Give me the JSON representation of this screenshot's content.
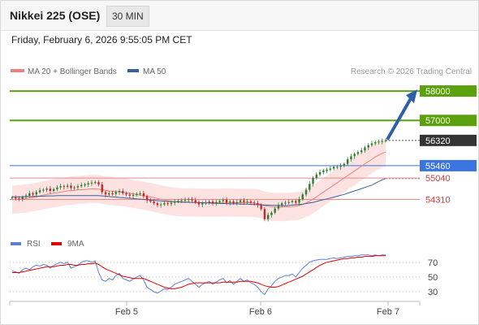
{
  "header": {
    "title": "Nikkei 225 (OSE)",
    "interval": "30 MIN",
    "datetime": "Friday, February 6, 2026 9:55:05 PM CET"
  },
  "legend": {
    "ma20_label": "MA 20 + Bollinger Bands",
    "ma50_label": "MA 50",
    "credit": "Research © 2026 Trading Central",
    "rsi_label": "RSI",
    "rsi_ma_label": "9MA"
  },
  "colors": {
    "candle_up": "#2e7d32",
    "candle_down": "#c62828",
    "ma20": "#f08080",
    "bollinger_fill": "#fde2e2",
    "ma50": "#3a5f9a",
    "resistance": "#5aa00f",
    "pivot": "#3b73e0",
    "support": "#e88a8a",
    "arrow": "#2f5fa5",
    "rsi": "#5b7fd6",
    "rsi_ma": "#e00000",
    "last_price_box": "#333333"
  },
  "chart_data": {
    "type": "candlestick",
    "x_ticks": [
      "Feb 5",
      "Feb 6",
      "Feb 7"
    ],
    "ylim": [
      53300,
      58500
    ],
    "price": {
      "levels": [
        {
          "label": "58000",
          "value": 58000,
          "kind": "resistance"
        },
        {
          "label": "57000",
          "value": 57000,
          "kind": "resistance"
        },
        {
          "label": "56320",
          "value": 56320,
          "kind": "last"
        },
        {
          "label": "55460",
          "value": 55460,
          "kind": "pivot"
        },
        {
          "label": "55040",
          "value": 55040,
          "kind": "support"
        },
        {
          "label": "54310",
          "value": 54310,
          "kind": "support"
        }
      ],
      "closes": [
        54380,
        54340,
        54330,
        54390,
        54440,
        54520,
        54480,
        54560,
        54620,
        54640,
        54680,
        54600,
        54660,
        54720,
        54760,
        54740,
        54780,
        54700,
        54720,
        54760,
        54800,
        54820,
        54860,
        54880,
        54900,
        54820,
        54560,
        54480,
        54520,
        54500,
        54560,
        54600,
        54520,
        54480,
        54440,
        54460,
        54500,
        54520,
        54420,
        54280,
        54240,
        54180,
        54120,
        54140,
        54180,
        54160,
        54200,
        54240,
        54260,
        54280,
        54300,
        54320,
        54280,
        54220,
        54140,
        54180,
        54200,
        54240,
        54180,
        54220,
        54260,
        54300,
        54200,
        54240,
        54180,
        54220,
        54280,
        54220,
        54240,
        54200,
        54180,
        54120,
        53980,
        53640,
        53780,
        53860,
        54000,
        54120,
        54180,
        54200,
        54220,
        54260,
        54200,
        54320,
        54480,
        54640,
        54840,
        55040,
        55160,
        55240,
        55300,
        55320,
        55360,
        55420,
        55420,
        55460,
        55520,
        55680,
        55780,
        55860,
        55920,
        55980,
        56080,
        56160,
        56220,
        56260,
        56280,
        56300,
        56320
      ],
      "ma20": [
        54300,
        54310,
        54320,
        54330,
        54340,
        54360,
        54380,
        54400,
        54430,
        54460,
        54480,
        54500,
        54520,
        54540,
        54560,
        54580,
        54600,
        54610,
        54620,
        54640,
        54640,
        54650,
        54660,
        54670,
        54670,
        54660,
        54640,
        54620,
        54600,
        54590,
        54580,
        54570,
        54560,
        54540,
        54520,
        54500,
        54480,
        54460,
        54440,
        54420,
        54400,
        54370,
        54340,
        54310,
        54290,
        54270,
        54250,
        54230,
        54220,
        54210,
        54210,
        54210,
        54210,
        54210,
        54200,
        54200,
        54200,
        54200,
        54200,
        54200,
        54200,
        54210,
        54210,
        54210,
        54200,
        54200,
        54200,
        54200,
        54200,
        54200,
        54190,
        54170,
        54140,
        54100,
        54080,
        54060,
        54050,
        54050,
        54050,
        54060,
        54060,
        54070,
        54080,
        54100,
        54140,
        54190,
        54250,
        54320,
        54400,
        54480,
        54560,
        54640,
        54720,
        54800,
        54880,
        54960,
        55040,
        55120,
        55200,
        55280,
        55360,
        55440,
        55520,
        55600,
        55680,
        55760,
        55820,
        55880,
        55920
      ],
      "ma50": [
        54400,
        54400,
        54400,
        54400,
        54410,
        54410,
        54410,
        54420,
        54420,
        54420,
        54430,
        54430,
        54430,
        54440,
        54440,
        54440,
        54440,
        54440,
        54440,
        54440,
        54440,
        54440,
        54440,
        54440,
        54440,
        54440,
        54430,
        54420,
        54410,
        54400,
        54390,
        54380,
        54370,
        54360,
        54350,
        54340,
        54330,
        54320,
        54310,
        54300,
        54290,
        54280,
        54270,
        54260,
        54250,
        54240,
        54240,
        54230,
        54230,
        54220,
        54220,
        54220,
        54210,
        54210,
        54200,
        54200,
        54190,
        54190,
        54180,
        54180,
        54170,
        54170,
        54170,
        54160,
        54160,
        54160,
        54150,
        54150,
        54150,
        54140,
        54140,
        54130,
        54130,
        54120,
        54120,
        54110,
        54110,
        54110,
        54100,
        54100,
        54110,
        54120,
        54130,
        54140,
        54150,
        54170,
        54190,
        54210,
        54240,
        54270,
        54300,
        54330,
        54360,
        54390,
        54420,
        54450,
        54480,
        54520,
        54560,
        54600,
        54640,
        54680,
        54720,
        54760,
        54800,
        54860,
        54920,
        54980,
        55020
      ],
      "bb_width": 480
    },
    "rsi": {
      "ylim": [
        20,
        82
      ],
      "ticks": [
        70,
        50,
        30
      ],
      "values": [
        58,
        57,
        55,
        60,
        62,
        60,
        64,
        66,
        65,
        67,
        66,
        62,
        66,
        68,
        70,
        68,
        70,
        62,
        64,
        66,
        70,
        72,
        72,
        70,
        72,
        56,
        46,
        44,
        48,
        46,
        52,
        55,
        48,
        46,
        44,
        47,
        50,
        52,
        46,
        36,
        33,
        30,
        28,
        31,
        34,
        33,
        36,
        40,
        42,
        44,
        46,
        48,
        44,
        40,
        36,
        40,
        42,
        44,
        40,
        43,
        46,
        48,
        42,
        45,
        40,
        44,
        48,
        44,
        46,
        42,
        40,
        36,
        30,
        26,
        34,
        38,
        44,
        48,
        50,
        52,
        52,
        54,
        50,
        56,
        62,
        66,
        70,
        72,
        73,
        74,
        74,
        74,
        75,
        76,
        75,
        76,
        77,
        78,
        78,
        79,
        79,
        80,
        80,
        80,
        79,
        80,
        79,
        80,
        80
      ],
      "ma": [
        56,
        56,
        56,
        57,
        58,
        59,
        60,
        61,
        62,
        63,
        64,
        64,
        64,
        65,
        66,
        66,
        67,
        67,
        66,
        66,
        67,
        67,
        68,
        68,
        69,
        67,
        64,
        61,
        59,
        57,
        55,
        53,
        51,
        50,
        49,
        48,
        48,
        48,
        48,
        46,
        44,
        42,
        40,
        38,
        36,
        35,
        34,
        34,
        35,
        36,
        38,
        40,
        41,
        42,
        42,
        42,
        42,
        42,
        42,
        42,
        42,
        43,
        43,
        43,
        43,
        43,
        44,
        44,
        44,
        44,
        43,
        42,
        40,
        38,
        37,
        36,
        36,
        37,
        39,
        41,
        43,
        45,
        47,
        49,
        51,
        54,
        57,
        60,
        63,
        66,
        68,
        70,
        71,
        72,
        73,
        74,
        75,
        75,
        76,
        76,
        77,
        77,
        78,
        78,
        78,
        79,
        79,
        79,
        79
      ]
    }
  }
}
